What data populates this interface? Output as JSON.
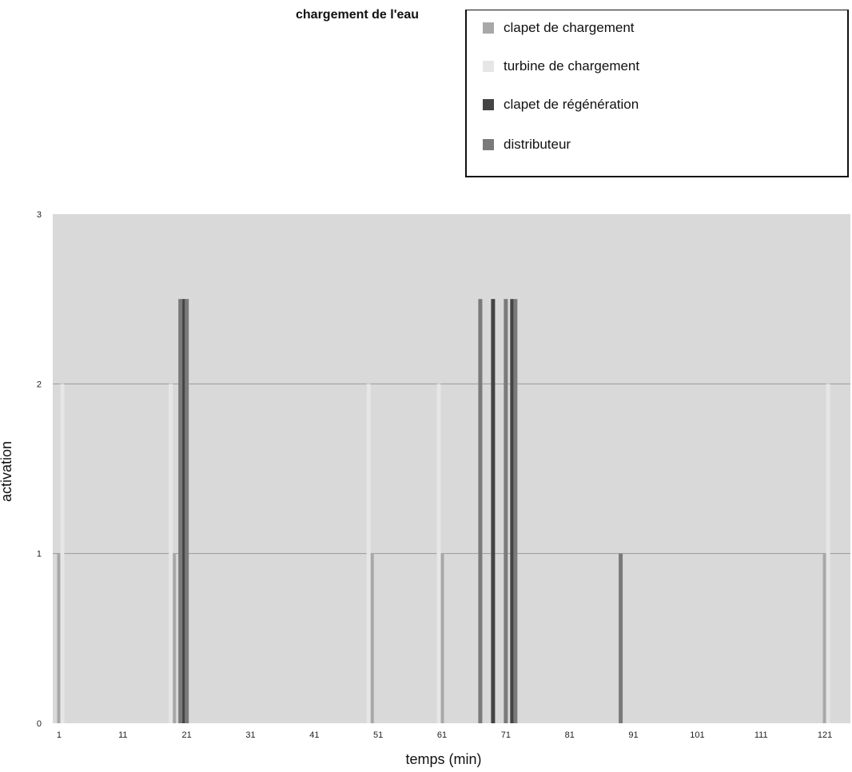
{
  "chart_data": {
    "type": "bar",
    "title": "chargement de l'eau",
    "xlabel": "temps (min)",
    "ylabel": "activation",
    "xlim": [
      0,
      125
    ],
    "ylim": [
      0,
      3
    ],
    "x_ticks": [
      "1",
      "11",
      "21",
      "31",
      "41",
      "51",
      "61",
      "71",
      "81",
      "91",
      "101",
      "111",
      "121"
    ],
    "y_ticks": [
      "0",
      "1",
      "2",
      "3"
    ],
    "grid": true,
    "legend_placement": "top-right",
    "series": [
      {
        "name": "clapet de chargement",
        "color": "#a8a8a8",
        "points": [
          [
            1,
            1
          ],
          [
            19,
            1
          ],
          [
            50,
            1
          ],
          [
            61,
            1
          ],
          [
            121,
            1
          ]
        ]
      },
      {
        "name": "turbine de chargement",
        "color": "#e6e6e6",
        "points": [
          [
            1.5,
            2
          ],
          [
            18.5,
            2
          ],
          [
            49.5,
            2
          ],
          [
            60.5,
            2
          ],
          [
            121.5,
            2
          ]
        ]
      },
      {
        "name": "clapet de régénération",
        "color": "#444444",
        "points": [
          [
            20.5,
            2.5
          ],
          [
            69,
            2.5
          ],
          [
            72,
            2.5
          ]
        ]
      },
      {
        "name": "distributeur",
        "color": "#7a7a7a",
        "points": [
          [
            20,
            2.5
          ],
          [
            21,
            2.5
          ],
          [
            67,
            2.5
          ],
          [
            71,
            2.5
          ],
          [
            72.5,
            2.5
          ],
          [
            89,
            1
          ]
        ]
      }
    ]
  },
  "colors": {
    "plot_background": "#d9d9d9",
    "grid": "#9a9a9a"
  }
}
